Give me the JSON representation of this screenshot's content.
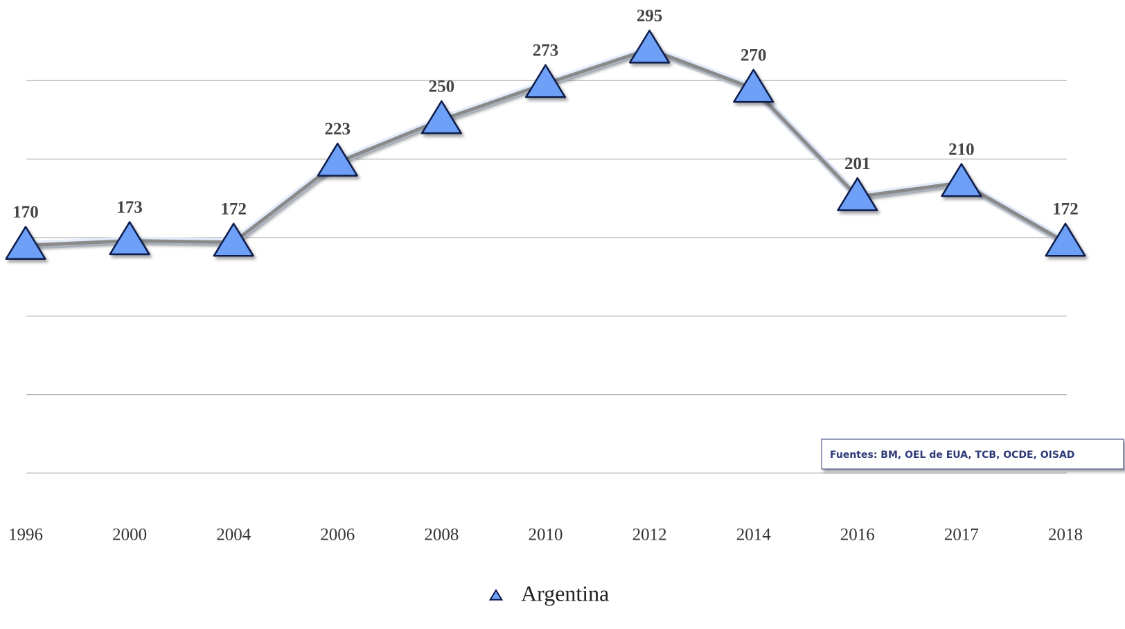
{
  "chart_data": {
    "type": "line",
    "categories": [
      "1996",
      "2000",
      "2004",
      "2006",
      "2008",
      "2010",
      "2012",
      "2014",
      "2016",
      "2017",
      "2018"
    ],
    "series": [
      {
        "name": "Argentina",
        "color": "#6ea0f7",
        "values": [
          170,
          173,
          172,
          223,
          250,
          273,
          295,
          270,
          201,
          210,
          172
        ]
      }
    ],
    "ylim": [
      0,
      325
    ],
    "yticks": [
      25,
      75,
      125,
      175,
      225,
      275
    ],
    "grid": true,
    "annotation": "Fuentes: BM, OEL de EUA, TCB, OCDE, OISAD",
    "legend": "bottom"
  }
}
